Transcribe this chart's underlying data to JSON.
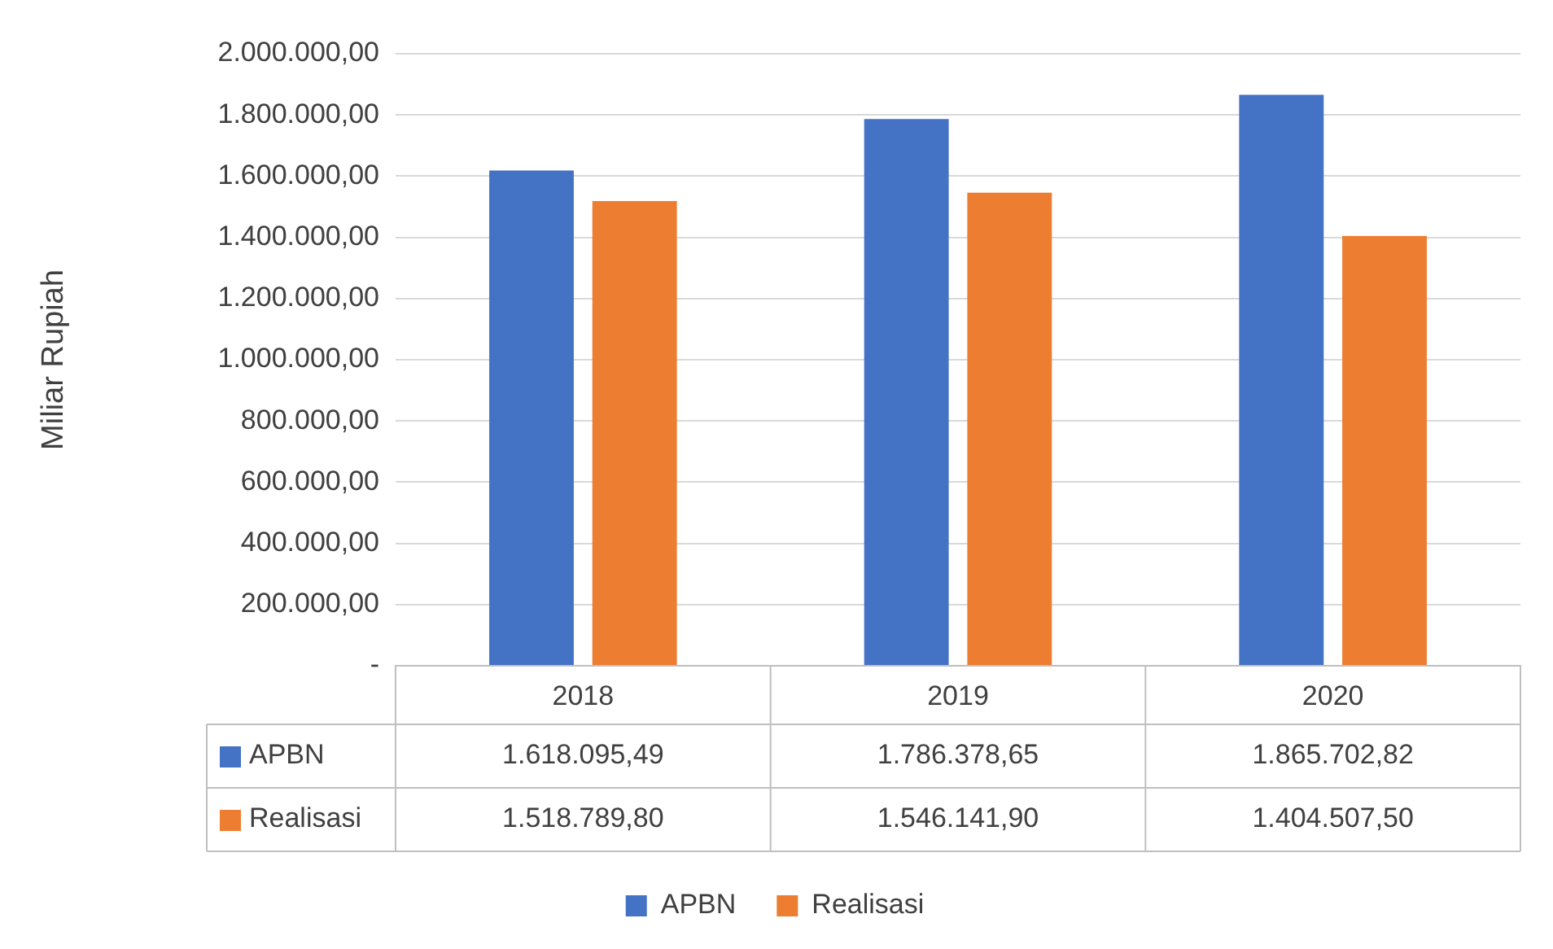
{
  "chart_data": {
    "type": "bar",
    "ylabel": "Miliar Rupiah",
    "categories": [
      "2018",
      "2019",
      "2020"
    ],
    "series": [
      {
        "name": "APBN",
        "color": "#4472c4",
        "values": [
          1618095.49,
          1786378.65,
          1865702.82
        ],
        "value_labels": [
          "1.618.095,49",
          "1.786.378,65",
          "1.865.702,82"
        ]
      },
      {
        "name": "Realisasi",
        "color": "#ed7d31",
        "values": [
          1518789.8,
          1546141.9,
          1404507.5
        ],
        "value_labels": [
          "1.518.789,80",
          "1.546.141,90",
          "1.404.507,50"
        ]
      }
    ],
    "ylim": [
      0,
      2000000
    ],
    "yticks": [
      {
        "value": 0,
        "label": "-"
      },
      {
        "value": 200000,
        "label": "200.000,00"
      },
      {
        "value": 400000,
        "label": "400.000,00"
      },
      {
        "value": 600000,
        "label": "600.000,00"
      },
      {
        "value": 800000,
        "label": "800.000,00"
      },
      {
        "value": 1000000,
        "label": "1.000.000,00"
      },
      {
        "value": 1200000,
        "label": "1.200.000,00"
      },
      {
        "value": 1400000,
        "label": "1.400.000,00"
      },
      {
        "value": 1600000,
        "label": "1.600.000,00"
      },
      {
        "value": 1800000,
        "label": "1.800.000,00"
      },
      {
        "value": 2000000,
        "label": "2.000.000,00"
      }
    ],
    "grid": "y",
    "legend": "bottom"
  }
}
